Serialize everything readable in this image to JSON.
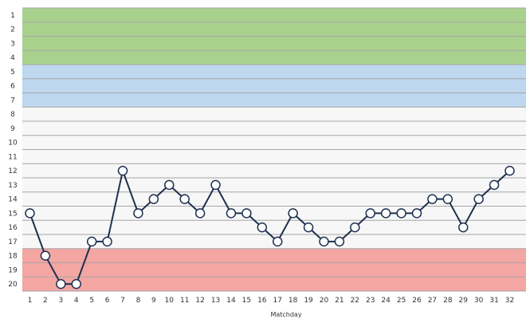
{
  "chart_data": {
    "type": "line",
    "xlabel": "Matchday",
    "ylabel": "",
    "x": [
      1,
      2,
      3,
      4,
      5,
      6,
      7,
      8,
      9,
      10,
      11,
      12,
      13,
      14,
      15,
      16,
      17,
      18,
      19,
      20,
      21,
      22,
      23,
      24,
      25,
      26,
      27,
      28,
      29,
      30,
      31,
      32
    ],
    "series": [
      {
        "values": [
          15,
          18,
          20,
          20,
          17,
          17,
          12,
          15,
          14,
          13,
          14,
          15,
          13,
          15,
          15,
          16,
          17,
          15,
          16,
          17,
          17,
          16,
          15,
          15,
          15,
          15,
          14,
          14,
          16,
          14,
          13,
          12
        ]
      }
    ],
    "xlim": [
      1,
      32
    ],
    "ylim": [
      1,
      20
    ],
    "y_inverted": true,
    "grid": true,
    "legend": "none",
    "zones": [
      {
        "from": 1,
        "to": 4,
        "color": "#a9d18e"
      },
      {
        "from": 5,
        "to": 7,
        "color": "#bdd7ee"
      },
      {
        "from": 8,
        "to": 17,
        "color": "#f7f7f7"
      },
      {
        "from": 18,
        "to": 20,
        "color": "#f4a6a3"
      }
    ],
    "colors": {
      "line": "#1f3050",
      "grid": "#a6a6a6"
    }
  }
}
